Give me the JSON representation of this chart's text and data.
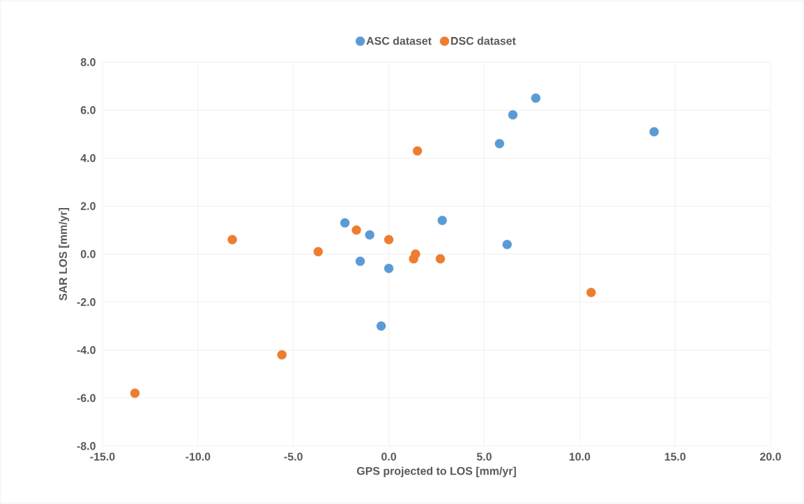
{
  "chart_data": {
    "type": "scatter",
    "xlabel": "GPS projected to LOS [mm/yr]",
    "ylabel": "SAR LOS [mm/yr]",
    "xlim": [
      -15,
      20
    ],
    "ylim": [
      -8,
      8
    ],
    "xticks": [
      {
        "value": -15,
        "label": "-15.0"
      },
      {
        "value": -10,
        "label": "-10.0"
      },
      {
        "value": -5,
        "label": "-5.0"
      },
      {
        "value": 0,
        "label": "0.0"
      },
      {
        "value": 5,
        "label": "5.0"
      },
      {
        "value": 10,
        "label": "10.0"
      },
      {
        "value": 15,
        "label": "15.0"
      },
      {
        "value": 20,
        "label": "20.0"
      }
    ],
    "yticks": [
      {
        "value": -8,
        "label": "-8.0"
      },
      {
        "value": -6,
        "label": "-6.0"
      },
      {
        "value": -4,
        "label": "-4.0"
      },
      {
        "value": -2,
        "label": "-2.0"
      },
      {
        "value": 0,
        "label": "0.0"
      },
      {
        "value": 2,
        "label": "2.0"
      },
      {
        "value": 4,
        "label": "4.0"
      },
      {
        "value": 6,
        "label": "6.0"
      },
      {
        "value": 8,
        "label": "8.0"
      }
    ],
    "grid": true,
    "legend": "top",
    "marker": "circle",
    "series": [
      {
        "name": "ASC dataset",
        "color": "#5b9bd5",
        "x": [
          -2.3,
          -1.0,
          -1.5,
          0.0,
          -0.4,
          2.8,
          6.2,
          5.8,
          6.5,
          7.7,
          13.9
        ],
        "values": [
          1.3,
          0.8,
          -0.3,
          -0.6,
          -3.0,
          1.4,
          0.4,
          4.6,
          5.8,
          6.5,
          5.1
        ]
      },
      {
        "name": "DSC dataset",
        "color": "#ed7d31",
        "x": [
          -13.3,
          -8.2,
          -5.6,
          -3.7,
          -1.7,
          0.0,
          1.5,
          1.4,
          1.3,
          2.7,
          10.6
        ],
        "values": [
          -5.8,
          0.6,
          -4.2,
          0.1,
          1.0,
          0.6,
          4.3,
          0.0,
          -0.2,
          -0.2,
          -1.6
        ]
      }
    ]
  }
}
